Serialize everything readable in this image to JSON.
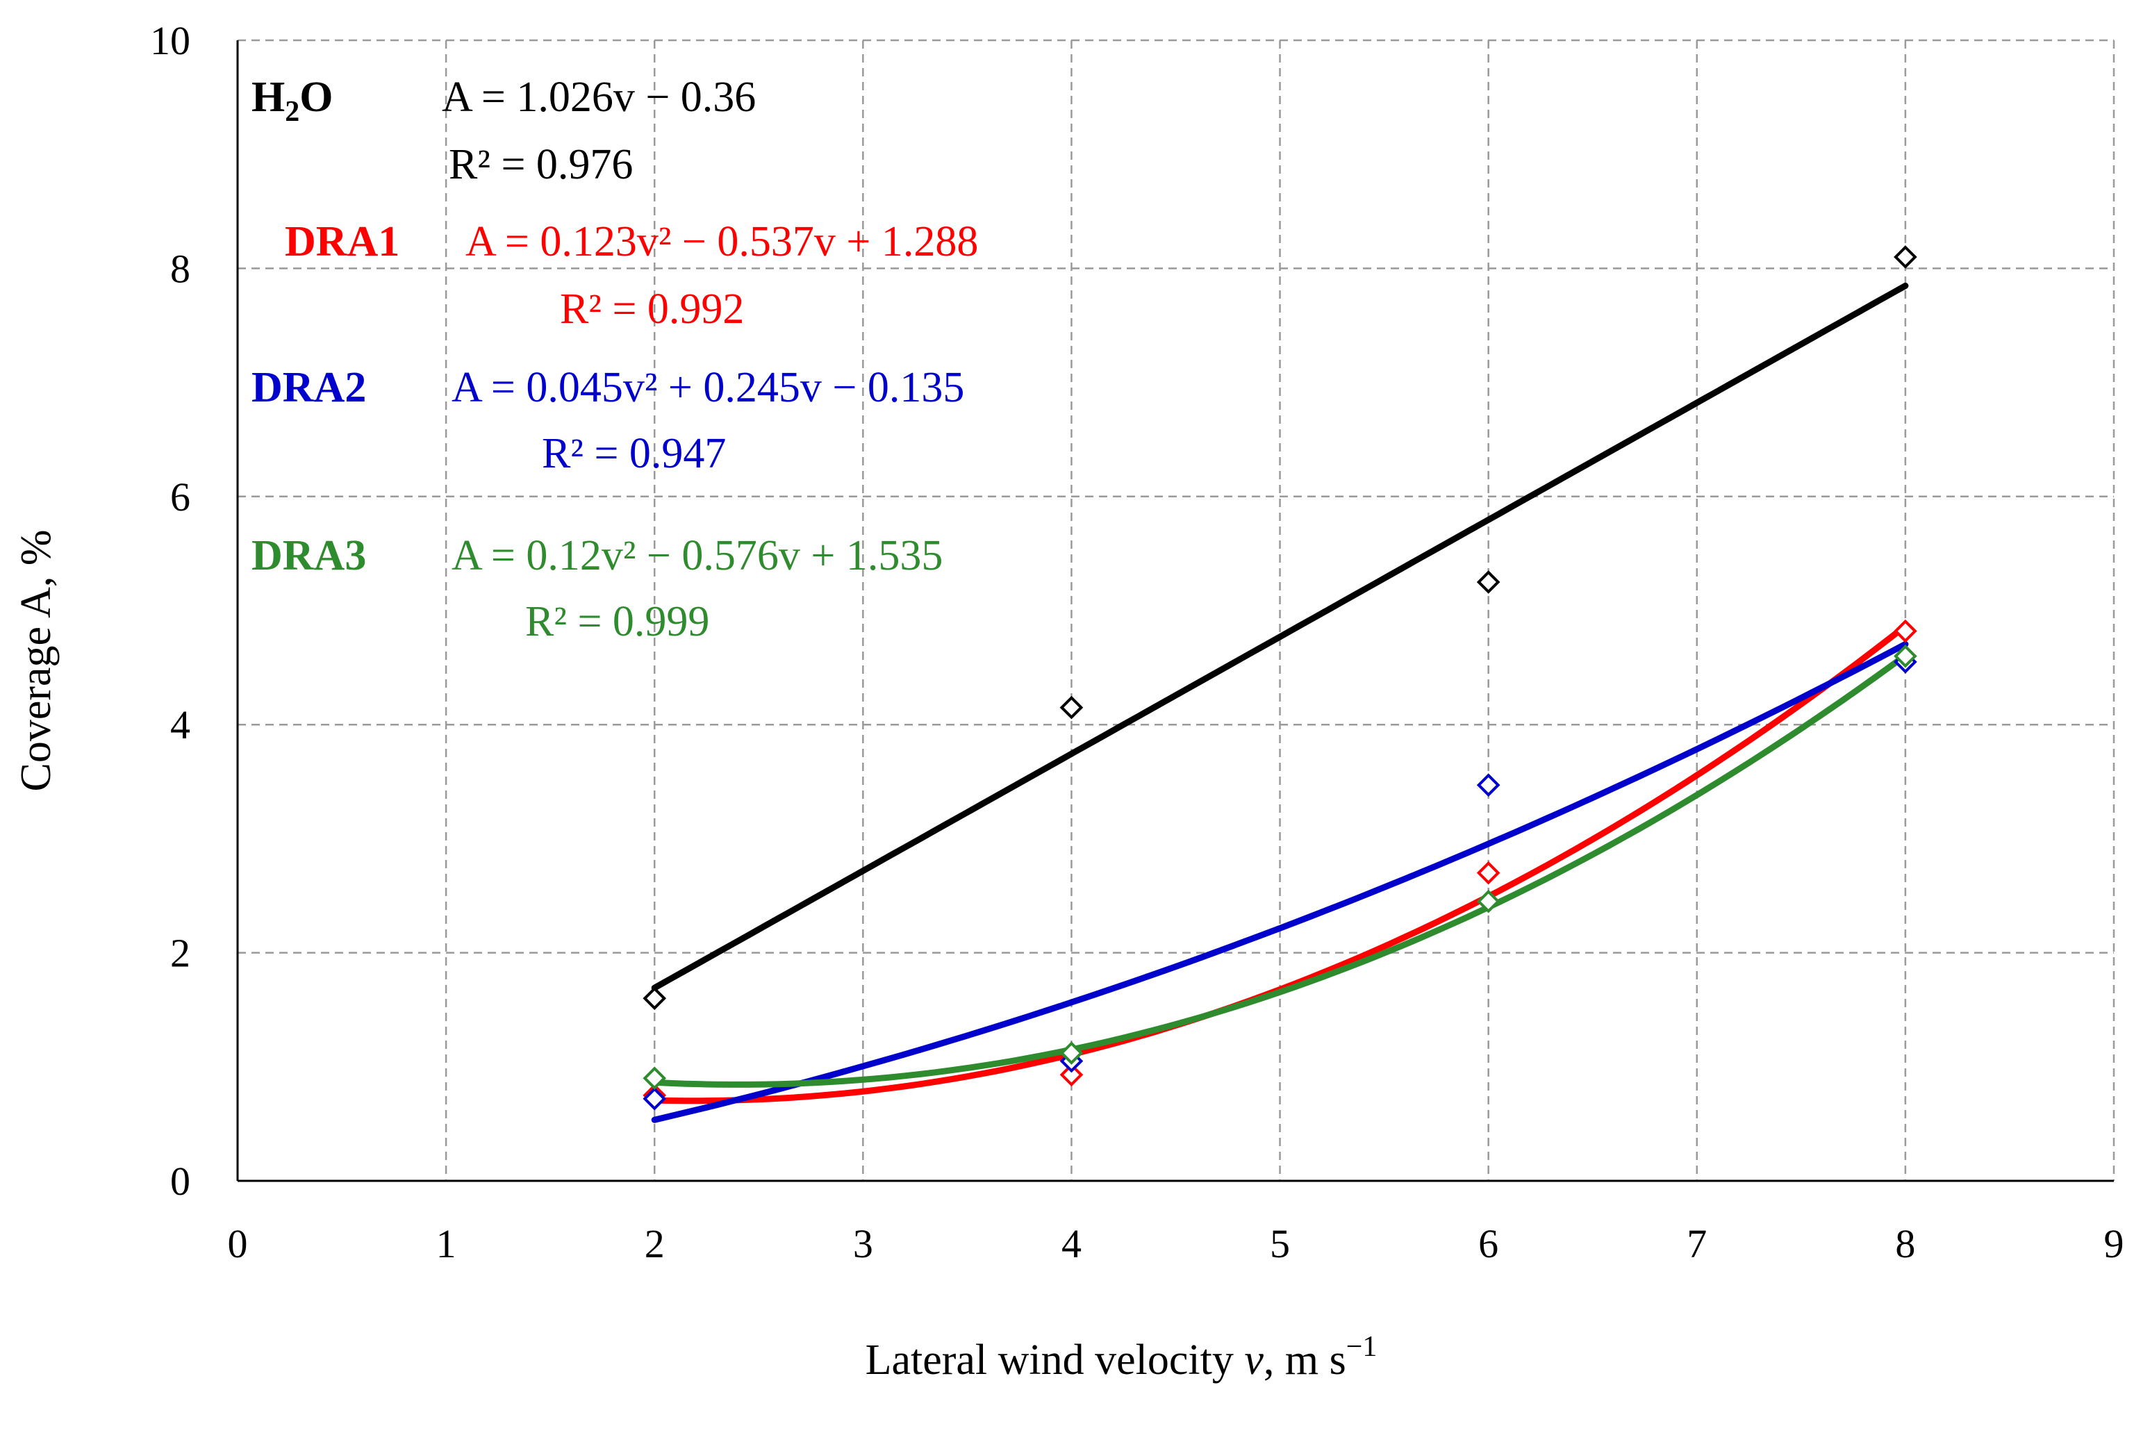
{
  "chart_data": {
    "type": "scatter",
    "title": "",
    "xlabel_prefix": "Lateral wind velocity ",
    "xlabel_var": "v",
    "xlabel_suffix": ", m s",
    "xlabel_exp": "−1",
    "ylabel": "Coverage A, %",
    "xlim": [
      0,
      9
    ],
    "ylim": [
      0,
      10
    ],
    "x_ticks": [
      0,
      1,
      2,
      3,
      4,
      5,
      6,
      7,
      8,
      9
    ],
    "y_ticks": [
      0,
      2,
      4,
      6,
      8,
      10
    ],
    "grid": true,
    "series": [
      {
        "name": "H2O",
        "label_main": "H",
        "label_sub": "2",
        "label_tail": "O",
        "color": "#000000",
        "x": [
          2,
          4,
          6,
          8
        ],
        "y": [
          1.6,
          4.15,
          5.25,
          8.1
        ],
        "fit": {
          "type": "linear",
          "coef": [
            1.026,
            -0.36
          ]
        },
        "equation": "A = 1.026v − 0.36",
        "r2_text": "R² = 0.976"
      },
      {
        "name": "DRA1",
        "color": "#ff0000",
        "x": [
          2,
          4,
          6,
          8
        ],
        "y": [
          0.75,
          0.93,
          2.7,
          4.82
        ],
        "fit": {
          "type": "quadratic",
          "coef": [
            0.123,
            -0.537,
            1.288
          ]
        },
        "equation": "A = 0.123v² − 0.537v + 1.288",
        "r2_text": "R² = 0.992"
      },
      {
        "name": "DRA2",
        "color": "#0000cc",
        "x": [
          2,
          4,
          6,
          8
        ],
        "y": [
          0.72,
          1.05,
          3.47,
          4.55
        ],
        "fit": {
          "type": "quadratic",
          "coef": [
            0.045,
            0.245,
            -0.135
          ]
        },
        "equation": "A = 0.045v² + 0.245v − 0.135",
        "r2_text": "R² = 0.947"
      },
      {
        "name": "DRA3",
        "color": "#2e8b2e",
        "x": [
          2,
          4,
          6,
          8
        ],
        "y": [
          0.9,
          1.12,
          2.45,
          4.6
        ],
        "fit": {
          "type": "quadratic",
          "coef": [
            0.12,
            -0.576,
            1.535
          ]
        },
        "equation": "A = 0.12v² − 0.576v + 1.535",
        "r2_text": "R² = 0.999"
      }
    ]
  }
}
